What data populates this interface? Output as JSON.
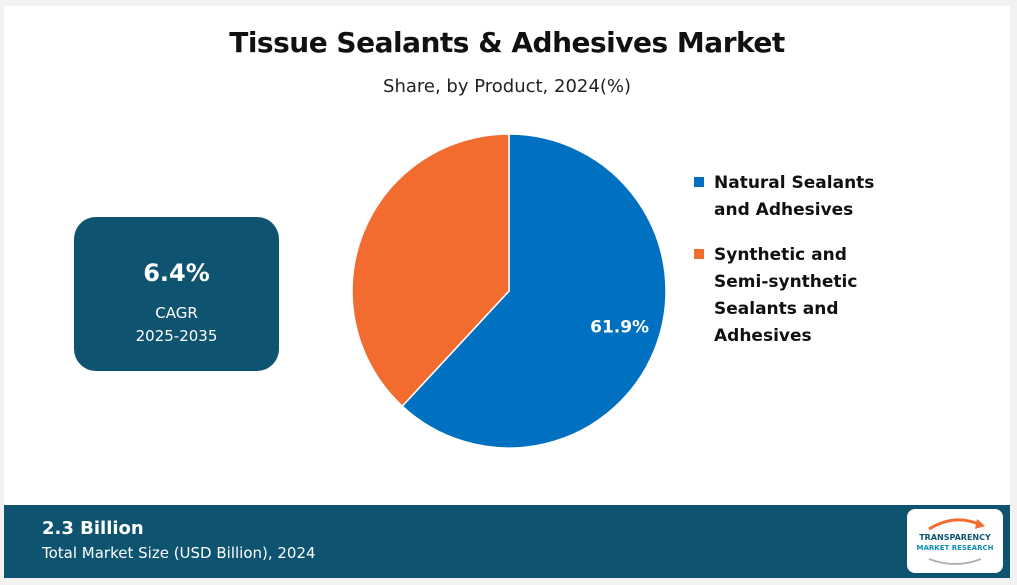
{
  "title": "Tissue Sealants & Adhesives Market",
  "subtitle": "Share, by Product, 2024(%)",
  "cagr": {
    "value": "6.4%",
    "label": "CAGR",
    "years": "2025-2035"
  },
  "footer": {
    "value": "2.3 Billion",
    "label": "Total Market Size (USD Billion), 2024"
  },
  "logo": {
    "line1": "TRANSPARENCY",
    "line2": "MARKET RESEARCH"
  },
  "chart_data": {
    "type": "pie",
    "title": "Tissue Sealants & Adhesives Market",
    "subtitle": "Share, by Product, 2024(%)",
    "legend_position": "right",
    "series": [
      {
        "name": "Natural Sealants and Adhesives",
        "value": 61.9,
        "label": "61.9%",
        "color": "#0070c0"
      },
      {
        "name": "Synthetic and Semi-synthetic Sealants and Adhesives",
        "value": 38.1,
        "label": "",
        "color": "#f26b2f"
      }
    ]
  },
  "colors": {
    "primary": "#0e5470",
    "natural": "#0070c0",
    "synthetic": "#f26b2f"
  }
}
